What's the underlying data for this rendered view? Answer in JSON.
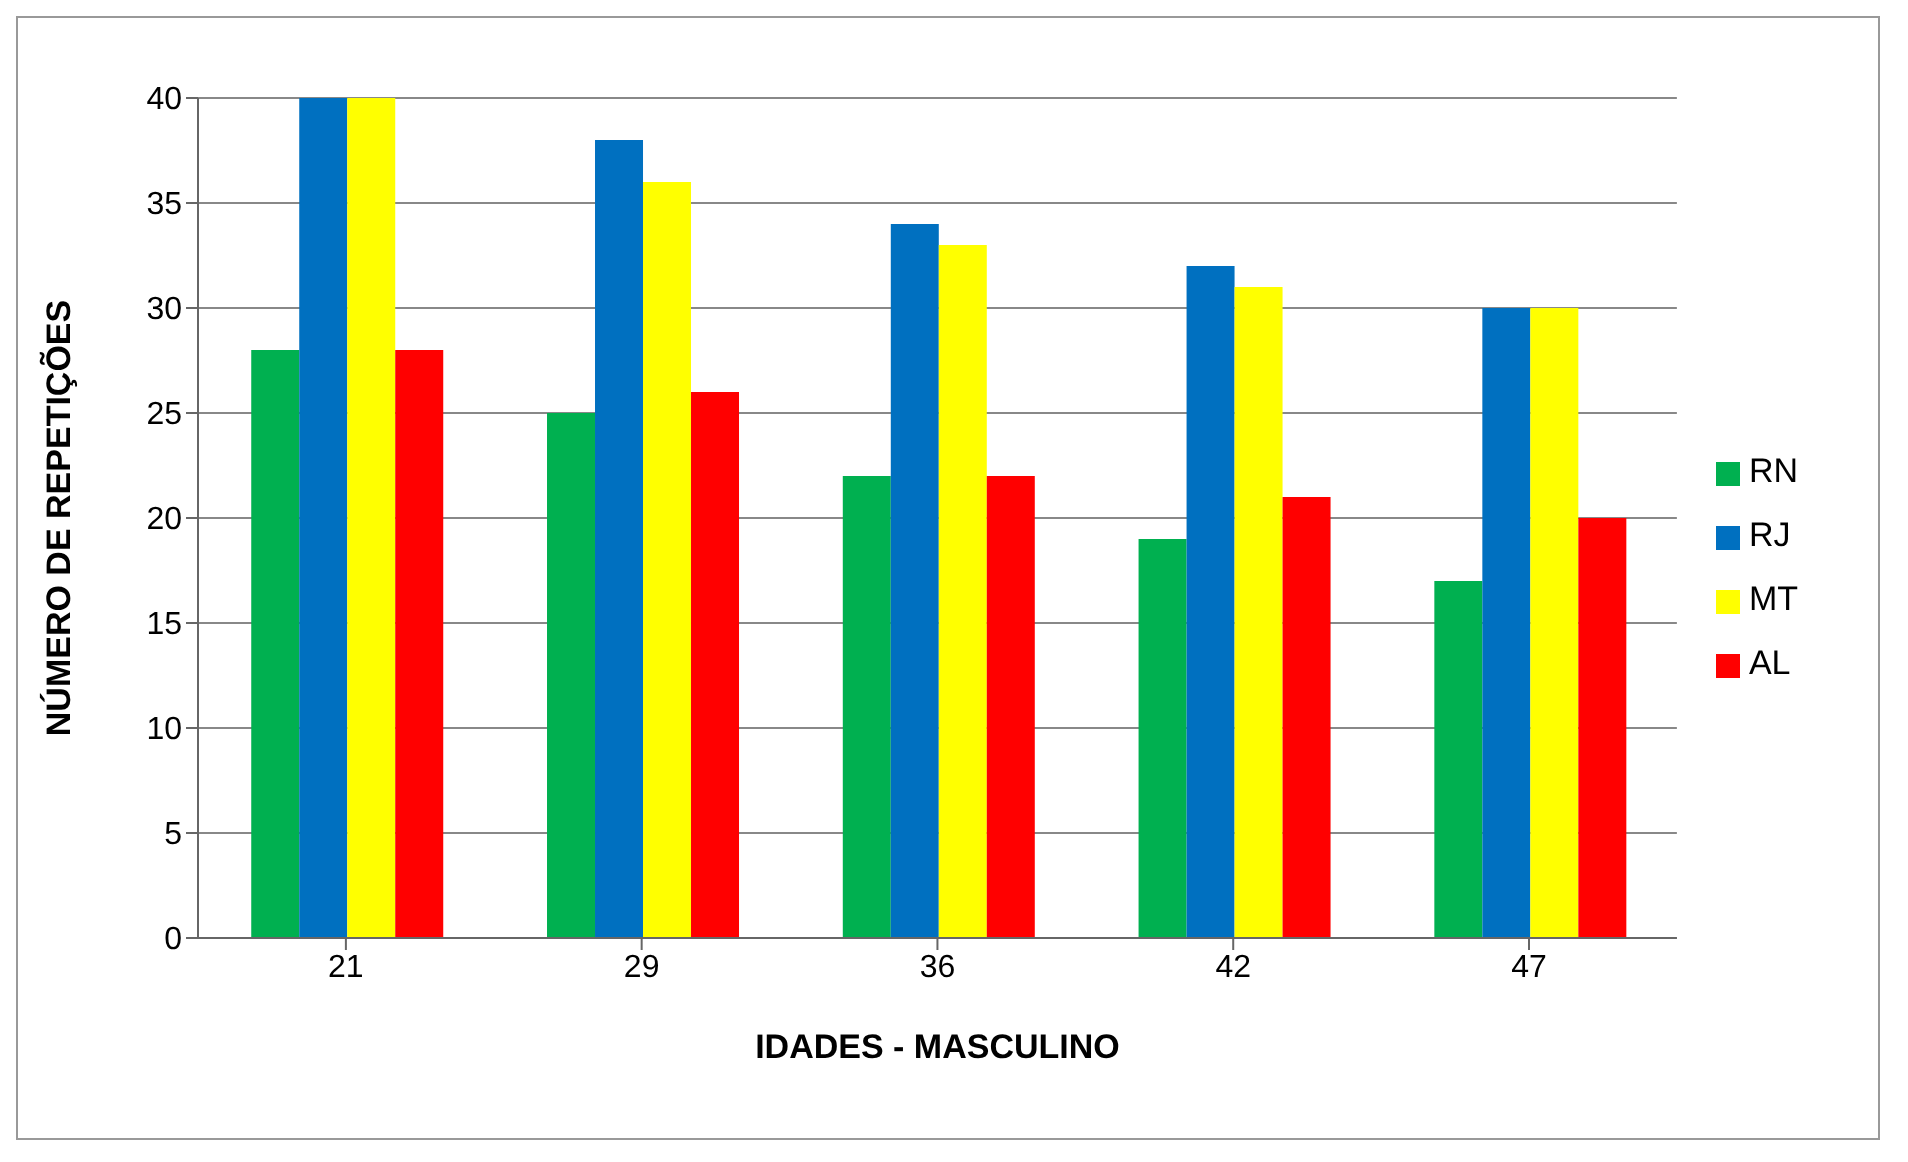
{
  "chart_data": {
    "type": "bar",
    "xlabel": "IDADES - MASCULINO",
    "ylabel": "NÚMERO DE REPETIÇÕES",
    "categories": [
      "21",
      "29",
      "36",
      "42",
      "47"
    ],
    "series": [
      {
        "name": "RN",
        "color": "#00b050",
        "values": [
          28,
          25,
          22,
          19,
          17
        ]
      },
      {
        "name": "RJ",
        "color": "#0070c0",
        "values": [
          40,
          38,
          34,
          32,
          30
        ]
      },
      {
        "name": "MT",
        "color": "#ffff00",
        "values": [
          40,
          36,
          33,
          31,
          30
        ]
      },
      {
        "name": "AL",
        "color": "#ff0000",
        "values": [
          28,
          26,
          22,
          21,
          20
        ]
      }
    ],
    "ylim": [
      0,
      40
    ],
    "yticks": [
      0,
      5,
      10,
      15,
      20,
      25,
      30,
      35,
      40
    ],
    "grid": "y",
    "legend": "right"
  }
}
